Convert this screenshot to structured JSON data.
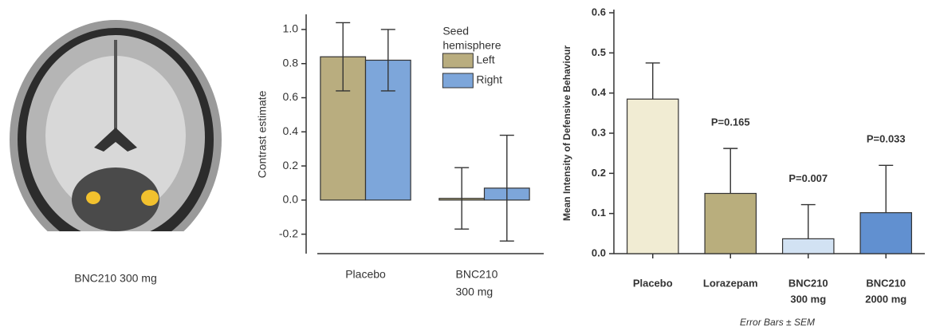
{
  "figure": {
    "caption": "BNC210 300 mg"
  },
  "chart_data": [
    {
      "type": "grouped_bar",
      "y_label": "Contrast estimate",
      "categories": [
        [
          "Placebo"
        ],
        [
          "BNC210",
          "300 mg"
        ]
      ],
      "legend_title": [
        "Seed",
        "hemisphere"
      ],
      "series": [
        {
          "name": "Left",
          "color": "#b9ad7f",
          "values": [
            0.84,
            0.01
          ],
          "errors": [
            0.2,
            0.18
          ]
        },
        {
          "name": "Right",
          "color": "#7da6da",
          "values": [
            0.82,
            0.07
          ],
          "errors": [
            0.18,
            0.31
          ]
        }
      ],
      "error_bars": "both",
      "ylim": [
        -0.3,
        1.07
      ],
      "yticks": [
        -0.2,
        {
          "value": 0,
          "label": "0.0"
        },
        0.2,
        0.4,
        0.6,
        0.8,
        {
          "value": 1,
          "label": "1.0"
        }
      ]
    },
    {
      "type": "bar",
      "y_label": "Mean Intensity of Defensive Behaviour",
      "categories": [
        [
          "Placebo"
        ],
        [
          "Lorazepam"
        ],
        [
          "BNC210",
          "300 mg"
        ],
        [
          "BNC210",
          "2000 mg"
        ]
      ],
      "values": [
        0.385,
        0.15,
        0.037,
        0.102
      ],
      "errors": [
        0.09,
        0.112,
        0.085,
        0.118
      ],
      "colors": [
        "#f1ecd3",
        "#b9ae7d",
        "#d2e2f3",
        "#6190d0"
      ],
      "p_values": [
        null,
        "P=0.165",
        "P=0.007",
        "P=0.033"
      ],
      "error_bars": "upper",
      "note": "Error Bars ± SEM",
      "ylim": [
        0,
        0.6
      ],
      "yticks": [
        {
          "value": 0,
          "label": "0.0"
        },
        0.1,
        0.2,
        0.3,
        0.4,
        0.5,
        0.6
      ]
    }
  ]
}
